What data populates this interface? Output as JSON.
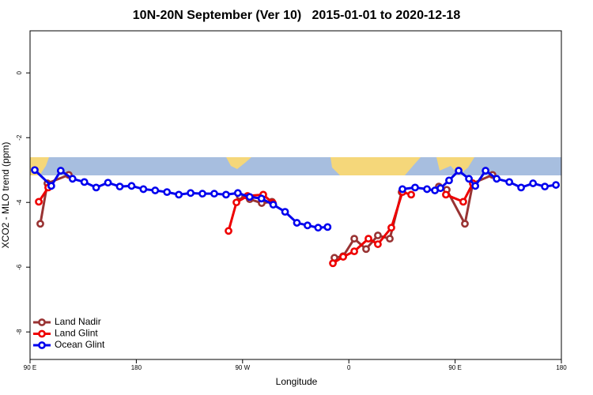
{
  "chart_data": {
    "type": "line",
    "title": "10N-20N September (Ver 10)   2015-01-01 to 2020-12-18",
    "xlabel": "Longitude",
    "ylabel": "XCO2 - MLO trend (ppm)",
    "xlim": [
      90,
      540
    ],
    "ylim": [
      -8.85,
      1.3
    ],
    "xticks": [
      {
        "value": 90,
        "label": "90 E"
      },
      180,
      {
        "value": 270,
        "label": "90 W"
      },
      {
        "value": 360,
        "label": "0"
      },
      {
        "value": 450,
        "label": "90 E"
      },
      {
        "value": 540,
        "label": "180"
      }
    ],
    "yticks": [
      0,
      -2,
      -4,
      -6,
      -8
    ],
    "legend": "bottom-left",
    "series": [
      {
        "name": "Land Nadir",
        "color": "#993333",
        "x": [
          98.7,
          104.7,
          122.8,
          null,
          267.5,
          276.1,
          286.2,
          294.9,
          null,
          347.8,
          355.2,
          364.6,
          374.6,
          384.6,
          394.7,
          404.7,
          null,
          436.2,
          442.9,
          458.3,
          465.0,
          481.7
        ],
        "values": [
          -4.66,
          -3.41,
          -3.15,
          null,
          -3.8,
          -3.9,
          -4.02,
          -3.98,
          null,
          -5.71,
          -5.66,
          -5.12,
          -5.44,
          -5.02,
          -5.12,
          -3.68,
          null,
          -3.51,
          -3.61,
          -4.66,
          -3.41,
          -3.15
        ]
      },
      {
        "name": "Land Glint",
        "color": "#ee0000",
        "x": [
          97.4,
          105.4,
          null,
          258.1,
          264.8,
          274.2,
          287.5,
          295.6,
          null,
          346.5,
          355.2,
          364.6,
          376.6,
          384.6,
          396.0,
          405.4,
          412.8,
          null,
          442.2,
          456.9,
          465.0
        ],
        "values": [
          -3.98,
          -3.54,
          null,
          -4.88,
          -4.0,
          -3.8,
          -3.76,
          -4.02,
          null,
          -5.88,
          -5.68,
          -5.51,
          -5.12,
          -5.29,
          -4.78,
          -3.68,
          -3.76,
          null,
          -3.76,
          -3.98,
          -3.41
        ]
      },
      {
        "name": "Ocean Glint",
        "color": "#0000ee",
        "x": [
          94,
          108,
          116,
          126,
          136,
          146,
          156,
          166,
          176,
          186,
          196,
          206,
          216,
          226,
          236,
          246,
          256,
          266,
          276,
          286,
          296,
          306,
          316,
          325,
          334,
          342,
          null,
          405.4,
          416.1,
          426.2,
          432.9,
          437.6,
          444.9,
          453.0,
          461.7,
          467.1,
          475.8,
          485.2,
          495.9,
          505.9,
          516.0,
          526.0,
          535.4
        ],
        "values": [
          -3.0,
          -3.49,
          -3.02,
          -3.27,
          -3.37,
          -3.54,
          -3.39,
          -3.51,
          -3.49,
          -3.59,
          -3.63,
          -3.68,
          -3.76,
          -3.71,
          -3.73,
          -3.73,
          -3.76,
          -3.71,
          -3.83,
          -3.88,
          -4.07,
          -4.29,
          -4.63,
          -4.71,
          -4.78,
          -4.76,
          null,
          -3.59,
          -3.54,
          -3.59,
          -3.63,
          -3.56,
          -3.32,
          -3.02,
          -3.27,
          -3.49,
          -3.02,
          -3.27,
          -3.37,
          -3.54,
          -3.41,
          -3.51,
          -3.46
        ]
      }
    ]
  }
}
